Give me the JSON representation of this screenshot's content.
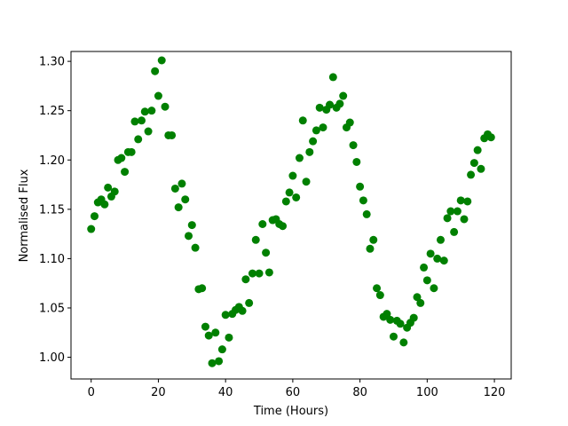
{
  "chart_data": {
    "type": "scatter",
    "title": "",
    "xlabel": "Time (Hours)",
    "ylabel": "Normalised Flux",
    "xlim": [
      -6,
      125
    ],
    "ylim": [
      0.978,
      1.31
    ],
    "xticks": [
      0,
      20,
      40,
      60,
      80,
      100,
      120
    ],
    "yticks": [
      1.0,
      1.05,
      1.1,
      1.15,
      1.2,
      1.25,
      1.3
    ],
    "xtick_labels": [
      "0",
      "20",
      "40",
      "60",
      "80",
      "100",
      "120"
    ],
    "ytick_labels": [
      "1.00",
      "1.05",
      "1.10",
      "1.15",
      "1.20",
      "1.25",
      "1.30"
    ],
    "grid": false,
    "marker_color": "#008000",
    "series": [
      {
        "x": [
          0,
          1,
          2,
          3,
          4,
          5,
          6,
          7,
          8,
          9,
          10,
          11,
          12,
          13,
          14,
          15,
          16,
          17,
          18,
          19,
          20,
          21,
          22,
          23,
          24,
          25,
          26,
          27,
          28,
          29,
          30,
          31,
          32,
          33,
          34,
          35,
          36,
          37,
          38,
          39,
          40,
          41,
          42,
          43,
          44,
          45,
          46,
          47,
          48,
          49,
          50,
          51,
          52,
          53,
          54,
          55,
          56,
          57,
          58,
          59,
          60,
          61,
          62,
          63,
          64,
          65,
          66,
          67,
          68,
          69,
          70,
          71,
          72,
          73,
          74,
          75,
          76,
          77,
          78,
          79,
          80,
          81,
          82,
          83,
          84,
          85,
          86,
          87,
          88,
          89,
          90,
          91,
          92,
          93,
          94,
          95,
          96,
          97,
          98,
          99,
          100,
          101,
          102,
          103,
          104,
          105,
          106,
          107,
          108,
          109,
          110,
          111,
          112,
          113,
          114,
          115,
          116,
          117,
          118,
          119
        ],
        "y": [
          1.13,
          1.143,
          1.157,
          1.16,
          1.155,
          1.172,
          1.163,
          1.168,
          1.2,
          1.202,
          1.188,
          1.208,
          1.208,
          1.239,
          1.221,
          1.24,
          1.249,
          1.229,
          1.25,
          1.29,
          1.265,
          1.301,
          1.254,
          1.225,
          1.225,
          1.171,
          1.152,
          1.176,
          1.16,
          1.123,
          1.134,
          1.111,
          1.069,
          1.07,
          1.031,
          1.022,
          0.994,
          1.025,
          0.996,
          1.008,
          1.043,
          1.02,
          1.044,
          1.048,
          1.051,
          1.047,
          1.079,
          1.055,
          1.085,
          1.119,
          1.085,
          1.135,
          1.106,
          1.086,
          1.139,
          1.14,
          1.135,
          1.133,
          1.158,
          1.167,
          1.184,
          1.162,
          1.202,
          1.24,
          1.178,
          1.208,
          1.219,
          1.23,
          1.253,
          1.233,
          1.251,
          1.256,
          1.284,
          1.253,
          1.257,
          1.265,
          1.233,
          1.238,
          1.215,
          1.198,
          1.173,
          1.159,
          1.145,
          1.11,
          1.119,
          1.07,
          1.063,
          1.041,
          1.044,
          1.038,
          1.021,
          1.037,
          1.034,
          1.015,
          1.03,
          1.035,
          1.04,
          1.061,
          1.055,
          1.091,
          1.078,
          1.105,
          1.07,
          1.1,
          1.119,
          1.098,
          1.141,
          1.148,
          1.127,
          1.148,
          1.159,
          1.14,
          1.158,
          1.185,
          1.197,
          1.21,
          1.191,
          1.222,
          1.226,
          1.223
        ]
      }
    ]
  }
}
